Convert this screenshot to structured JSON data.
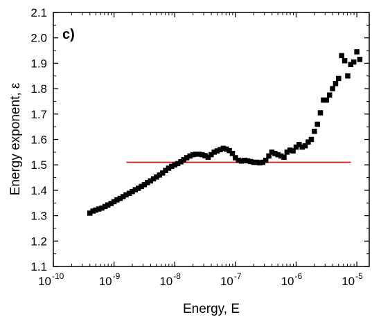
{
  "chart_data": {
    "type": "scatter",
    "panel_label": "c)",
    "xlabel": "Energy, E",
    "ylabel": "Energy exponent, ε",
    "x_scale": "log",
    "xlim": [
      1e-10,
      1.6e-05
    ],
    "ylim": [
      1.1,
      2.1
    ],
    "x_ticks": [
      {
        "value": 1e-10,
        "base": "10",
        "exp": "-10"
      },
      {
        "value": 1e-09,
        "base": "10",
        "exp": "-9"
      },
      {
        "value": 1e-08,
        "base": "10",
        "exp": "-8"
      },
      {
        "value": 1e-07,
        "base": "10",
        "exp": "-7"
      },
      {
        "value": 1e-06,
        "base": "10",
        "exp": "-6"
      },
      {
        "value": 1e-05,
        "base": "10",
        "exp": "-5"
      }
    ],
    "y_ticks": [
      "1.1",
      "1.2",
      "1.3",
      "1.4",
      "1.5",
      "1.6",
      "1.7",
      "1.8",
      "1.9",
      "2.0",
      "2.1"
    ],
    "grid": false,
    "marker_color": "#000000",
    "series": [
      {
        "marker": "square",
        "color": "#000000",
        "points": [
          [
            4e-10,
            1.31
          ],
          [
            4.5e-10,
            1.318
          ],
          [
            5e-10,
            1.322
          ],
          [
            5.6e-10,
            1.326
          ],
          [
            6.3e-10,
            1.33
          ],
          [
            7.1e-10,
            1.336
          ],
          [
            7.9e-10,
            1.342
          ],
          [
            8.9e-10,
            1.348
          ],
          [
            1e-09,
            1.355
          ],
          [
            1.12e-09,
            1.362
          ],
          [
            1.26e-09,
            1.368
          ],
          [
            1.41e-09,
            1.375
          ],
          [
            1.58e-09,
            1.382
          ],
          [
            1.78e-09,
            1.388
          ],
          [
            2e-09,
            1.395
          ],
          [
            2.24e-09,
            1.402
          ],
          [
            2.51e-09,
            1.408
          ],
          [
            2.82e-09,
            1.415
          ],
          [
            3.16e-09,
            1.422
          ],
          [
            3.55e-09,
            1.43
          ],
          [
            3.98e-09,
            1.437
          ],
          [
            4.47e-09,
            1.445
          ],
          [
            5.01e-09,
            1.452
          ],
          [
            5.62e-09,
            1.46
          ],
          [
            6.31e-09,
            1.468
          ],
          [
            7.08e-09,
            1.478
          ],
          [
            7.94e-09,
            1.487
          ],
          [
            8.91e-09,
            1.494
          ],
          [
            1e-08,
            1.5
          ],
          [
            1.12e-08,
            1.505
          ],
          [
            1.26e-08,
            1.512
          ],
          [
            1.41e-08,
            1.52
          ],
          [
            1.58e-08,
            1.528
          ],
          [
            1.78e-08,
            1.535
          ],
          [
            2e-08,
            1.54
          ],
          [
            2.24e-08,
            1.542
          ],
          [
            2.51e-08,
            1.542
          ],
          [
            2.82e-08,
            1.54
          ],
          [
            3.16e-08,
            1.536
          ],
          [
            3.55e-08,
            1.53
          ],
          [
            3.98e-08,
            1.54
          ],
          [
            4.47e-08,
            1.55
          ],
          [
            5.01e-08,
            1.555
          ],
          [
            5.62e-08,
            1.56
          ],
          [
            6.31e-08,
            1.565
          ],
          [
            7.08e-08,
            1.562
          ],
          [
            7.94e-08,
            1.556
          ],
          [
            8.91e-08,
            1.545
          ],
          [
            1e-07,
            1.528
          ],
          [
            1.12e-07,
            1.518
          ],
          [
            1.26e-07,
            1.515
          ],
          [
            1.41e-07,
            1.518
          ],
          [
            1.58e-07,
            1.516
          ],
          [
            1.78e-07,
            1.513
          ],
          [
            2e-07,
            1.51
          ],
          [
            2.24e-07,
            1.51
          ],
          [
            2.51e-07,
            1.508
          ],
          [
            2.82e-07,
            1.51
          ],
          [
            3.16e-07,
            1.518
          ],
          [
            3.55e-07,
            1.535
          ],
          [
            3.98e-07,
            1.55
          ],
          [
            4.47e-07,
            1.545
          ],
          [
            5.01e-07,
            1.54
          ],
          [
            5.62e-07,
            1.535
          ],
          [
            6.31e-07,
            1.53
          ],
          [
            7.08e-07,
            1.55
          ],
          [
            7.94e-07,
            1.558
          ],
          [
            8.91e-07,
            1.555
          ],
          [
            1e-06,
            1.57
          ],
          [
            1.12e-06,
            1.58
          ],
          [
            1.26e-06,
            1.57
          ],
          [
            1.41e-06,
            1.575
          ],
          [
            1.58e-06,
            1.59
          ],
          [
            1.78e-06,
            1.6
          ],
          [
            2e-06,
            1.632
          ],
          [
            2.24e-06,
            1.66
          ],
          [
            2.51e-06,
            1.705
          ],
          [
            2.82e-06,
            1.755
          ],
          [
            3.16e-06,
            1.755
          ],
          [
            3.55e-06,
            1.775
          ],
          [
            3.98e-06,
            1.8
          ],
          [
            4.47e-06,
            1.82
          ],
          [
            5.01e-06,
            1.84
          ],
          [
            5.62e-06,
            1.93
          ],
          [
            6.31e-06,
            1.91
          ],
          [
            7.08e-06,
            1.85
          ],
          [
            7.94e-06,
            1.895
          ],
          [
            8.91e-06,
            1.905
          ],
          [
            1e-05,
            1.945
          ],
          [
            1.12e-05,
            1.915
          ]
        ]
      }
    ],
    "fit_line": {
      "color": "#e8141a",
      "y": 1.51,
      "x_start": 1.6e-09,
      "x_end": 8e-06
    }
  }
}
